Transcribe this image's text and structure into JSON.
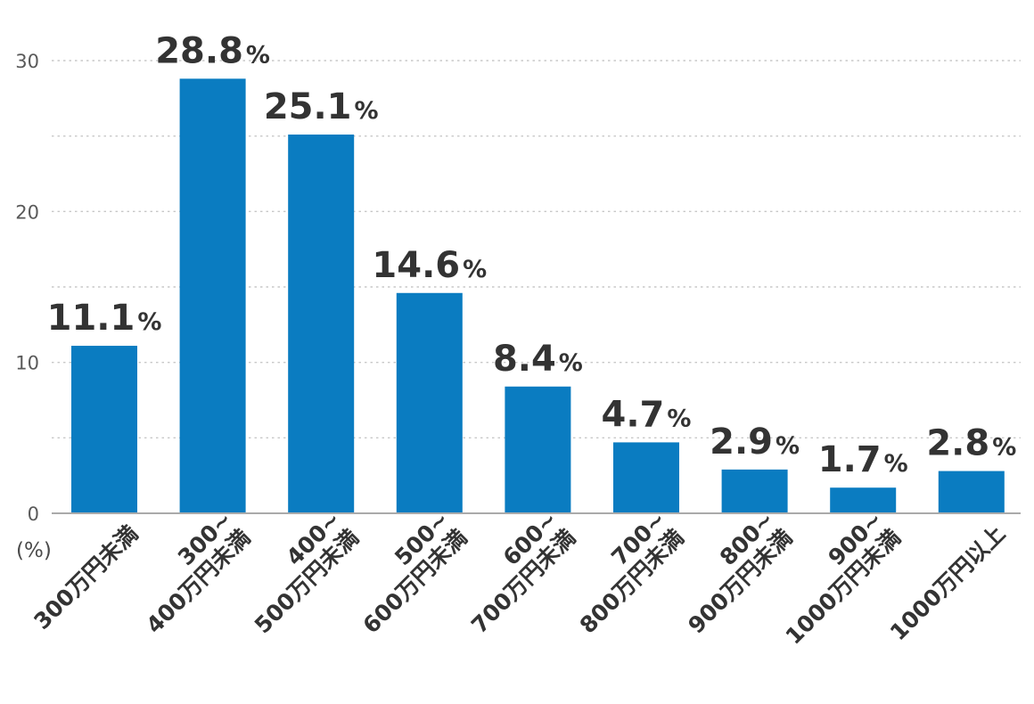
{
  "chart_data": {
    "type": "bar",
    "title": "",
    "xlabel": "",
    "ylabel": "(%)",
    "ylim": [
      0,
      30
    ],
    "yticks": [
      "0",
      "10",
      "20",
      "30"
    ],
    "grid": true,
    "categories": [
      [
        "300万円未満"
      ],
      [
        "300~",
        "400万円未満"
      ],
      [
        "400~",
        "500万円未満"
      ],
      [
        "500~",
        "600万円未満"
      ],
      [
        "600~",
        "700万円未満"
      ],
      [
        "700~",
        "800万円未満"
      ],
      [
        "800~",
        "900万円未満"
      ],
      [
        "900~",
        "1000万円未満"
      ],
      [
        "1000万円以上"
      ]
    ],
    "values": [
      11.1,
      28.8,
      25.1,
      14.6,
      8.4,
      4.7,
      2.9,
      1.7,
      2.8
    ],
    "data_labels": [
      "11.1",
      "28.8",
      "25.1",
      "14.6",
      "8.4",
      "4.7",
      "2.9",
      "1.7",
      "2.8"
    ],
    "label_suffix": "%",
    "bar_color": "#0a7cc1",
    "grid_color": "#c8c8c8",
    "axis_color": "#aaaaaa"
  }
}
